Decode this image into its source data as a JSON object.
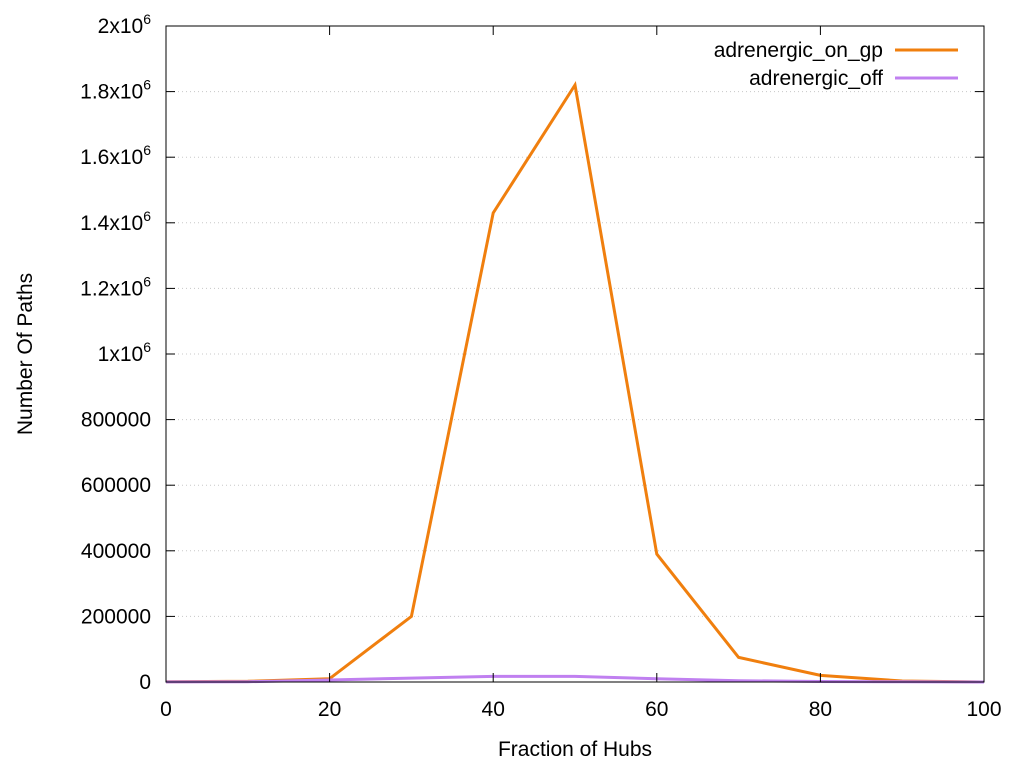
{
  "chart_data": {
    "type": "line",
    "xlabel": "Fraction of Hubs",
    "ylabel": "Number Of Paths",
    "xlim": [
      0,
      100
    ],
    "ylim": [
      0,
      2000000
    ],
    "x_ticks": [
      {
        "value": 0,
        "label": "0"
      },
      {
        "value": 20,
        "label": "20"
      },
      {
        "value": 40,
        "label": "40"
      },
      {
        "value": 60,
        "label": "60"
      },
      {
        "value": 80,
        "label": "80"
      },
      {
        "value": 100,
        "label": "100"
      }
    ],
    "y_ticks": [
      {
        "value": 0,
        "label": "0"
      },
      {
        "value": 200000,
        "label": "200000"
      },
      {
        "value": 400000,
        "label": "400000"
      },
      {
        "value": 600000,
        "label": "600000"
      },
      {
        "value": 800000,
        "label": "800000"
      },
      {
        "value": 1000000,
        "mantissa": "1x10",
        "exp": "6"
      },
      {
        "value": 1200000,
        "mantissa": "1.2x10",
        "exp": "6"
      },
      {
        "value": 1400000,
        "mantissa": "1.4x10",
        "exp": "6"
      },
      {
        "value": 1600000,
        "mantissa": "1.6x10",
        "exp": "6"
      },
      {
        "value": 1800000,
        "mantissa": "1.8x10",
        "exp": "6"
      },
      {
        "value": 2000000,
        "mantissa": "2x10",
        "exp": "6"
      }
    ],
    "grid": "horizontal dotted",
    "legend_position": "top-right",
    "x": [
      0,
      10,
      20,
      30,
      40,
      50,
      60,
      70,
      80,
      90,
      100
    ],
    "series": [
      {
        "name": "adrenergic_on_gp",
        "color": "#f07f0e",
        "values": [
          500,
          2000,
          10000,
          200000,
          1430000,
          1820000,
          390000,
          75000,
          20000,
          3000,
          0
        ]
      },
      {
        "name": "adrenergic_off",
        "color": "#c080f0",
        "values": [
          200,
          1000,
          6000,
          12000,
          17000,
          17000,
          10000,
          4000,
          1500,
          500,
          0
        ]
      }
    ]
  }
}
